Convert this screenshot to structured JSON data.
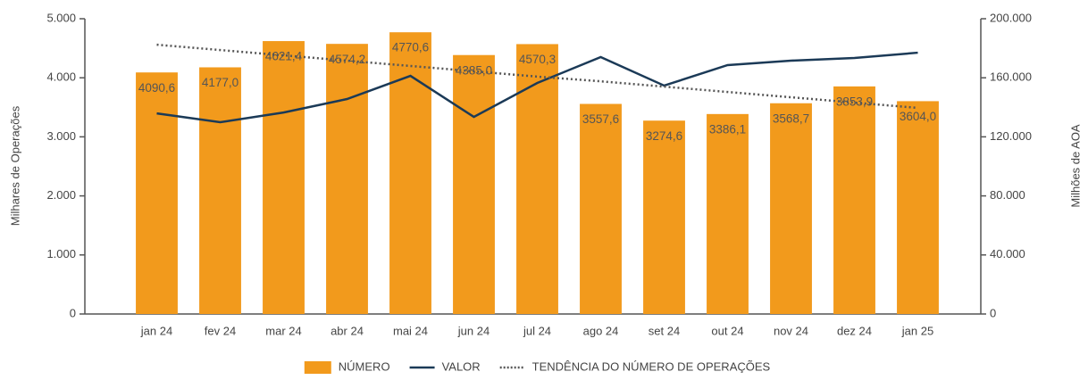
{
  "chart_data": {
    "type": "bar",
    "categories": [
      "jan 24",
      "fev 24",
      "mar 24",
      "abr 24",
      "mai 24",
      "jun 24",
      "jul 24",
      "ago 24",
      "set 24",
      "out 24",
      "nov 24",
      "dez 24",
      "jan 25"
    ],
    "series": [
      {
        "name": "NÚMERO",
        "type": "bar",
        "color": "#f29a1c",
        "values": [
          4090.6,
          4177.0,
          4621.4,
          4574.2,
          4770.6,
          4385.0,
          4570.3,
          3557.6,
          3274.6,
          3386.1,
          3568.7,
          3853.9,
          3604.0
        ],
        "value_labels": [
          "4090,6",
          "4177,0",
          "4621,4",
          "4574,2",
          "4770,6",
          "4385,0",
          "4570,3",
          "3557,6",
          "3274,6",
          "3386,1",
          "3568,7",
          "3853,9",
          "3604,0"
        ]
      },
      {
        "name": "VALOR",
        "type": "line",
        "axis": "y2",
        "color": "#1b3a57",
        "values": [
          135900,
          129900,
          136500,
          145600,
          161300,
          133500,
          156500,
          174000,
          154700,
          168600,
          171600,
          173400,
          177000
        ]
      },
      {
        "name": "TENDÊNCIA DO NÚMERO DE OPERAÇÕES",
        "type": "dotted",
        "color": "#555555",
        "values": [
          4560,
          4470,
          4380,
          4290,
          4200,
          4110,
          4020,
          3940,
          3850,
          3760,
          3670,
          3580,
          3490
        ]
      }
    ],
    "ylabel": "Milhares de Operações",
    "y2label": "Milhões de AOA",
    "ylim": [
      0,
      5000
    ],
    "yticks": [
      0,
      {
        "value": 1000,
        "label": "1.000"
      },
      {
        "value": 2000,
        "label": "2.000"
      },
      {
        "value": 3000,
        "label": "3.000"
      },
      {
        "value": 4000,
        "label": "4.000"
      },
      {
        "value": 5000,
        "label": "5.000"
      }
    ],
    "y2lim": [
      0,
      200000
    ],
    "y2ticks": [
      0,
      {
        "value": 40000,
        "label": "40.000"
      },
      {
        "value": 80000,
        "label": "80.000"
      },
      {
        "value": 120000,
        "label": "120.000"
      },
      {
        "value": 160000,
        "label": "160.000"
      },
      {
        "value": 200000,
        "label": "200.000"
      }
    ],
    "grid": false,
    "legend": "bottom"
  }
}
